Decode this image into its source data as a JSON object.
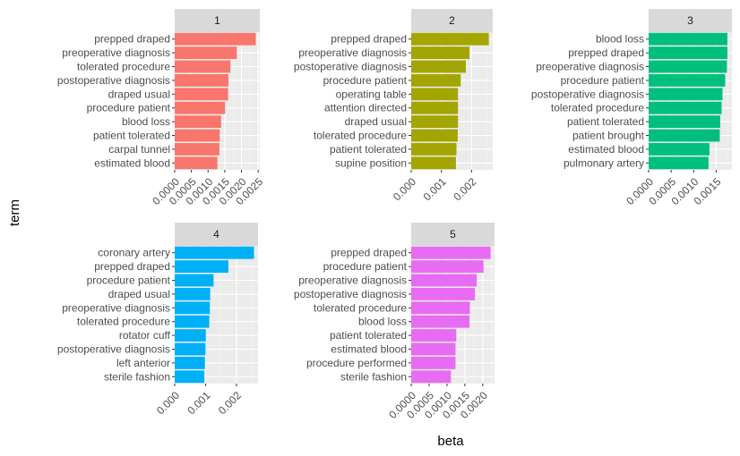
{
  "chart_data": {
    "type": "bar",
    "orientation": "horizontal",
    "xlabel": "term",
    "ylabel": "beta",
    "facets": [
      {
        "label": "1",
        "color": "#F8766D",
        "terms": [
          "prepped draped",
          "preoperative diagnosis",
          "tolerated procedure",
          "postoperative diagnosis",
          "draped usual",
          "procedure patient",
          "blood loss",
          "patient tolerated",
          "carpal tunnel",
          "estimated blood"
        ],
        "values": [
          0.00243,
          0.00186,
          0.00167,
          0.00161,
          0.0016,
          0.00151,
          0.00139,
          0.00135,
          0.00134,
          0.00128
        ],
        "ticks": [
          0,
          0.0005,
          0.001,
          0.0015,
          0.002,
          0.0025
        ],
        "tick_labels": [
          "0.0000",
          "0.0005",
          "0.0010",
          "0.0015",
          "0.0020",
          "0.0025"
        ],
        "xlim": [
          0,
          0.00255
        ]
      },
      {
        "label": "2",
        "color": "#A3A500",
        "terms": [
          "prepped draped",
          "preoperative diagnosis",
          "postoperative diagnosis",
          "procedure patient",
          "operating table",
          "attention directed",
          "draped usual",
          "tolerated procedure",
          "patient tolerated",
          "supine position"
        ],
        "values": [
          0.00257,
          0.00193,
          0.00181,
          0.00164,
          0.00155,
          0.00155,
          0.00155,
          0.00154,
          0.0015,
          0.00148
        ],
        "ticks": [
          0,
          0.001,
          0.002
        ],
        "tick_labels": [
          "0.000",
          "0.001",
          "0.002"
        ],
        "xlim": [
          0,
          0.0027
        ]
      },
      {
        "label": "3",
        "color": "#00BF7D",
        "terms": [
          "blood loss",
          "prepped draped",
          "preoperative diagnosis",
          "procedure patient",
          "postoperative diagnosis",
          "tolerated procedure",
          "patient tolerated",
          "patient brought",
          "estimated blood",
          "pulmonary artery"
        ],
        "values": [
          0.00175,
          0.00175,
          0.00174,
          0.0017,
          0.00164,
          0.00162,
          0.00159,
          0.00158,
          0.00135,
          0.00133
        ],
        "ticks": [
          0,
          0.0005,
          0.001,
          0.0015
        ],
        "tick_labels": [
          "0.0000",
          "0.0005",
          "0.0010",
          "0.0015"
        ],
        "xlim": [
          0,
          0.00185
        ]
      },
      {
        "label": "4",
        "color": "#00B0F6",
        "terms": [
          "coronary artery",
          "prepped draped",
          "procedure patient",
          "draped usual",
          "preoperative diagnosis",
          "tolerated procedure",
          "rotator cuff",
          "postoperative diagnosis",
          "left anterior",
          "sterile fashion"
        ],
        "values": [
          0.00257,
          0.00174,
          0.00126,
          0.00115,
          0.00114,
          0.00112,
          0.00101,
          0.001,
          0.00098,
          0.00096
        ],
        "ticks": [
          0,
          0.001,
          0.002
        ],
        "tick_labels": [
          "0.000",
          "0.001",
          "0.002"
        ],
        "xlim": [
          0,
          0.0027
        ]
      },
      {
        "label": "5",
        "color": "#E76BF3",
        "terms": [
          "prepped draped",
          "procedure patient",
          "preoperative diagnosis",
          "postoperative diagnosis",
          "tolerated procedure",
          "blood loss",
          "patient tolerated",
          "estimated blood",
          "procedure performed",
          "sterile fashion"
        ],
        "values": [
          0.00222,
          0.00202,
          0.00183,
          0.00178,
          0.00164,
          0.00163,
          0.00126,
          0.00124,
          0.00124,
          0.00111
        ],
        "ticks": [
          0,
          0.0005,
          0.001,
          0.0015,
          0.002
        ],
        "tick_labels": [
          "0.0000",
          "0.0005",
          "0.0010",
          "0.0015",
          "0.0020"
        ],
        "xlim": [
          0,
          0.00233
        ]
      }
    ]
  }
}
